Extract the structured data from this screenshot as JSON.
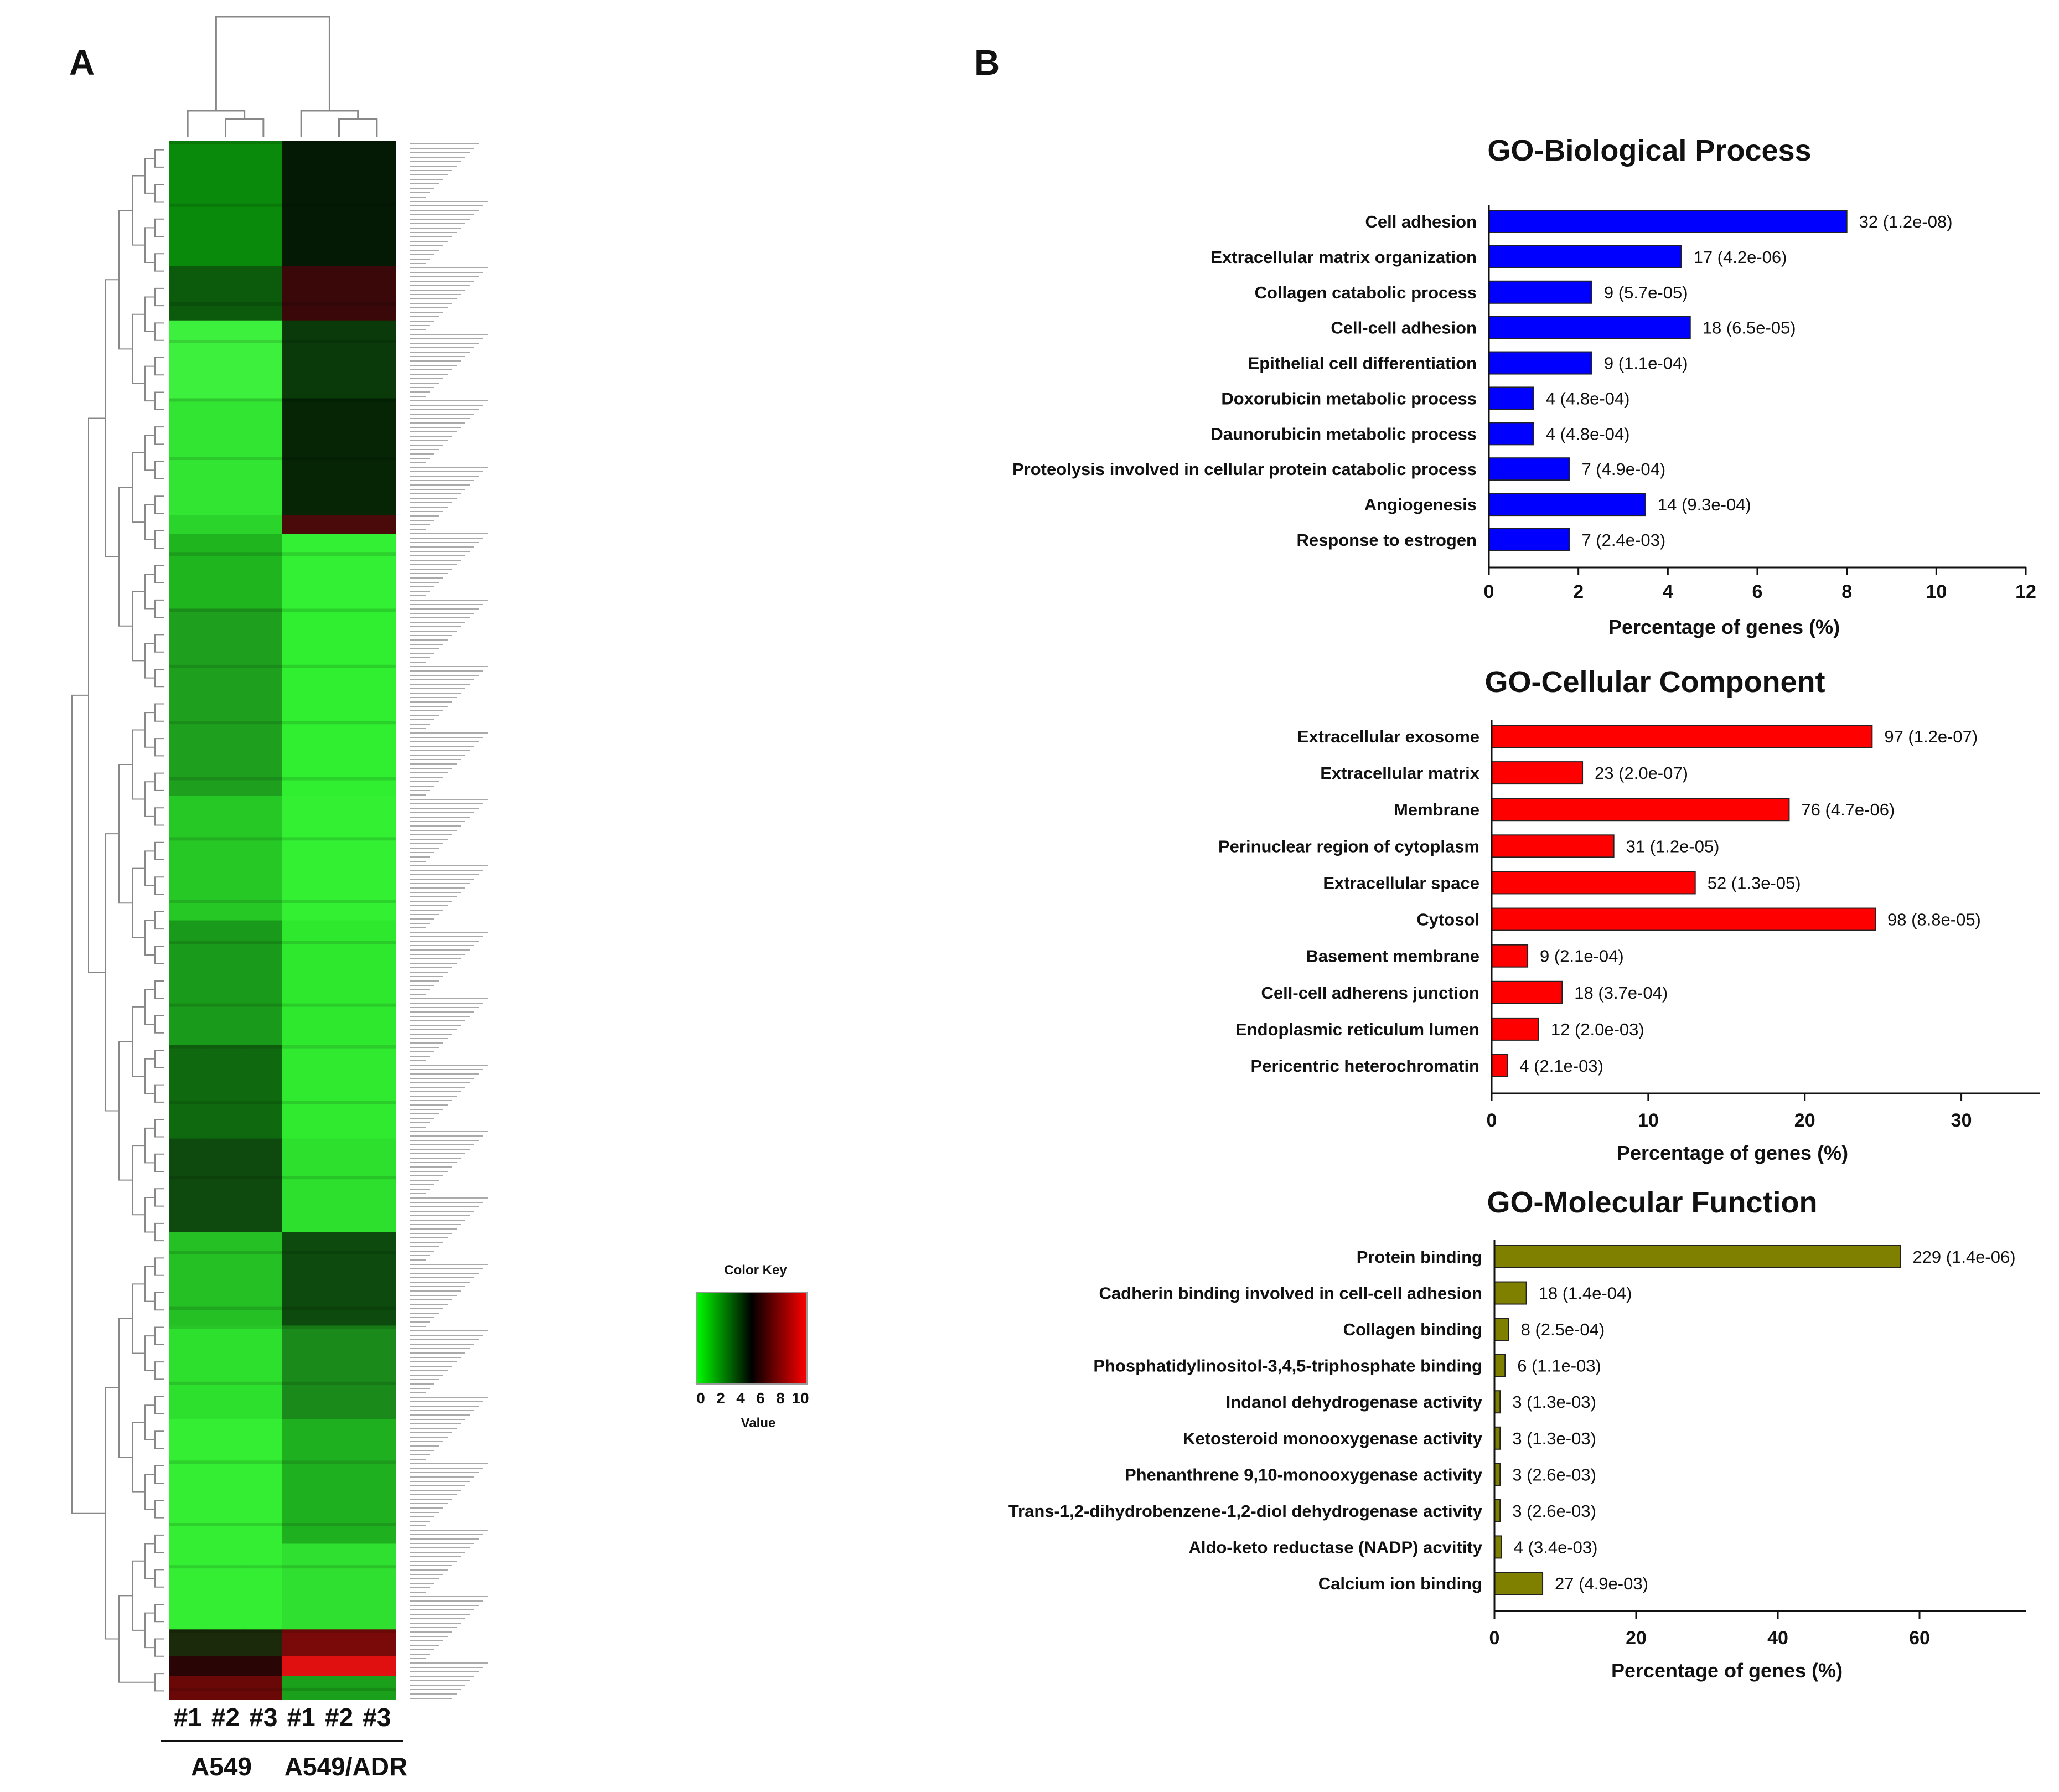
{
  "panels": {
    "a": "A",
    "b": "B"
  },
  "heatmap": {
    "samples": [
      "#1",
      "#2",
      "#3",
      "#1",
      "#2",
      "#3"
    ],
    "groups": [
      "A549",
      "A549/ADR"
    ],
    "color_key": {
      "title": "Color Key",
      "ticks": [
        "0",
        "2",
        "4",
        "6",
        "8",
        "10"
      ],
      "label": "Value",
      "colors": {
        "low": "#00ff00",
        "mid": "#000000",
        "high": "#ff0000"
      }
    }
  },
  "chart_data": [
    {
      "type": "bar",
      "orientation": "horizontal",
      "title": "GO-Biological Process",
      "xlabel": "Percentage of genes (%)",
      "xlim": [
        0,
        12
      ],
      "xticks": [
        "0",
        "2",
        "4",
        "6",
        "8",
        "10",
        "12"
      ],
      "color": "#0000ff",
      "categories": [
        "Cell adhesion",
        "Extracellular matrix organization",
        "Collagen catabolic process",
        "Cell-cell adhesion",
        "Epithelial cell differentiation",
        "Doxorubicin metabolic process",
        "Daunorubicin metabolic process",
        "Proteolysis involved in cellular protein catabolic process",
        "Angiogenesis",
        "Response to estrogen"
      ],
      "values": [
        8.0,
        4.3,
        2.3,
        4.5,
        2.3,
        1.0,
        1.0,
        1.8,
        3.5,
        1.8
      ],
      "data_labels": [
        "32 (1.2e-08)",
        "17 (4.2e-06)",
        "9 (5.7e-05)",
        "18 (6.5e-05)",
        "9 (1.1e-04)",
        "4 (4.8e-04)",
        "4 (4.8e-04)",
        "7 (4.9e-04)",
        "14 (9.3e-04)",
        "7 (2.4e-03)"
      ]
    },
    {
      "type": "bar",
      "orientation": "horizontal",
      "title": "GO-Cellular Component",
      "xlabel": "Percentage of genes (%)",
      "xlim": [
        0,
        35
      ],
      "xticks": [
        "0",
        "10",
        "20",
        "30"
      ],
      "color": "#ff0000",
      "categories": [
        "Extracellular exosome",
        "Extracellular matrix",
        "Membrane",
        "Perinuclear region of cytoplasm",
        "Extracellular space",
        "Cytosol",
        "Basement membrane",
        "Cell-cell adherens junction",
        "Endoplasmic reticulum lumen",
        "Pericentric heterochromatin"
      ],
      "values": [
        24.3,
        5.8,
        19.0,
        7.8,
        13.0,
        24.5,
        2.3,
        4.5,
        3.0,
        1.0
      ],
      "data_labels": [
        "97 (1.2e-07)",
        "23 (2.0e-07)",
        "76 (4.7e-06)",
        "31 (1.2e-05)",
        "52 (1.3e-05)",
        "98 (8.8e-05)",
        "9 (2.1e-04)",
        "18 (3.7e-04)",
        "12 (2.0e-03)",
        "4 (2.1e-03)"
      ]
    },
    {
      "type": "bar",
      "orientation": "horizontal",
      "title": "GO-Molecular Function",
      "xlabel": "Percentage of genes (%)",
      "xlim": [
        0,
        75
      ],
      "xticks": [
        "0",
        "20",
        "40",
        "60"
      ],
      "color": "#808000",
      "categories": [
        "Protein binding",
        "Cadherin binding involved in cell-cell adhesion",
        "Collagen binding",
        "Phosphatidylinositol-3,4,5-triphosphate binding",
        "Indanol dehydrogenase activity",
        "Ketosteroid monooxygenase activity",
        "Phenanthrene 9,10-monooxygenase activity",
        "Trans-1,2-dihydrobenzene-1,2-diol dehydrogenase activity",
        "Aldo-keto reductase (NADP) acvitity",
        "Calcium ion binding"
      ],
      "values": [
        57.3,
        4.5,
        2.0,
        1.5,
        0.8,
        0.8,
        0.8,
        0.8,
        1.0,
        6.8
      ],
      "data_labels": [
        "229 (1.4e-06)",
        "18 (1.4e-04)",
        "8 (2.5e-04)",
        "6 (1.1e-03)",
        "3 (1.3e-03)",
        "3 (1.3e-03)",
        "3 (2.6e-03)",
        "3 (2.6e-03)",
        "4 (3.4e-03)",
        "27 (4.9e-03)"
      ]
    }
  ]
}
